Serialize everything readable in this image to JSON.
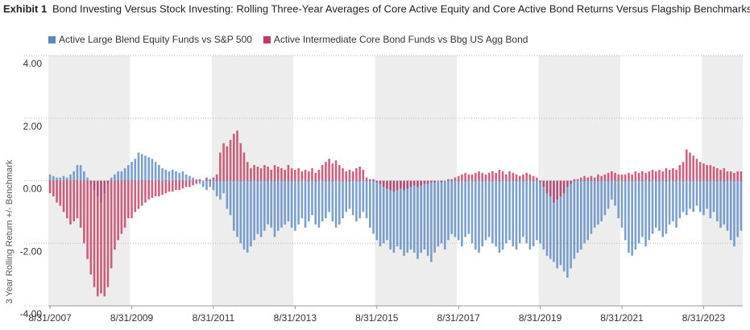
{
  "chart_data": {
    "type": "bar",
    "title_label": "Exhibit 1",
    "title": "Bond Investing Versus Stock Investing: Rolling Three-Year Averages of Core Active Equity and Core Active Bond Returns Versus Flagship Benchmarks",
    "y_label": "3 Year Rolling Return +/- Benchmark",
    "ylim": [
      -4,
      4
    ],
    "yticks": [
      {
        "value": 4,
        "label": "4.00"
      },
      {
        "value": 2,
        "label": "2.00"
      },
      {
        "value": 0,
        "label": "0.00"
      },
      {
        "value": -2,
        "label": "-2.00"
      },
      {
        "value": -4,
        "label": "-4.00"
      }
    ],
    "grid": true,
    "legend": "top-left",
    "categories": [
      "8/31/2007",
      null,
      null,
      null,
      null,
      null,
      null,
      null,
      null,
      null,
      null,
      null,
      null,
      null,
      null,
      null,
      null,
      null,
      null,
      null,
      null,
      null,
      null,
      null,
      "8/31/2009",
      null,
      null,
      null,
      null,
      null,
      null,
      null,
      null,
      null,
      null,
      null,
      null,
      null,
      null,
      null,
      null,
      null,
      null,
      null,
      null,
      null,
      null,
      null,
      "8/31/2011",
      null,
      null,
      null,
      null,
      null,
      null,
      null,
      null,
      null,
      null,
      null,
      null,
      null,
      null,
      null,
      null,
      null,
      null,
      null,
      null,
      null,
      null,
      null,
      "8/31/2013",
      null,
      null,
      null,
      null,
      null,
      null,
      null,
      null,
      null,
      null,
      null,
      null,
      null,
      null,
      null,
      null,
      null,
      null,
      null,
      null,
      null,
      null,
      null,
      "8/31/2015",
      null,
      null,
      null,
      null,
      null,
      null,
      null,
      null,
      null,
      null,
      null,
      null,
      null,
      null,
      null,
      null,
      null,
      null,
      null,
      null,
      null,
      null,
      null,
      "8/31/2017",
      null,
      null,
      null,
      null,
      null,
      null,
      null,
      null,
      null,
      null,
      null,
      null,
      null,
      null,
      null,
      null,
      null,
      null,
      null,
      null,
      null,
      null,
      null,
      "8/31/2019",
      null,
      null,
      null,
      null,
      null,
      null,
      null,
      null,
      null,
      null,
      null,
      null,
      null,
      null,
      null,
      null,
      null,
      null,
      null,
      null,
      null,
      null,
      null,
      "8/31/2021",
      null,
      null,
      null,
      null,
      null,
      null,
      null,
      null,
      null,
      null,
      null,
      null,
      null,
      null,
      null,
      null,
      null,
      null,
      null,
      null,
      null,
      null,
      null,
      "8/31/2023",
      null,
      null,
      null,
      null,
      null,
      null,
      null,
      null,
      null,
      null,
      null
    ],
    "series": [
      {
        "name": "Active Large Blend Equity Funds vs S&P 500",
        "color": "#5a88c2",
        "values": [
          0.2,
          0.15,
          0.1,
          0.1,
          0.15,
          0.1,
          0.2,
          0.3,
          0.5,
          0.5,
          0.3,
          0.1,
          -0.1,
          -0.3,
          -0.5,
          -0.7,
          -0.4,
          -0.1,
          0.1,
          0.2,
          0.3,
          0.3,
          0.4,
          0.5,
          0.6,
          0.7,
          0.9,
          0.85,
          0.8,
          0.75,
          0.7,
          0.6,
          0.5,
          0.4,
          0.35,
          0.3,
          0.35,
          0.3,
          0.25,
          0.3,
          0.2,
          0.15,
          0.1,
          0.05,
          -0.1,
          -0.2,
          -0.3,
          -0.2,
          -0.3,
          -0.5,
          -0.6,
          -0.4,
          -0.9,
          -1.1,
          -1.6,
          -1.8,
          -2.0,
          -2.2,
          -2.3,
          -2.1,
          -1.9,
          -1.7,
          -1.8,
          -1.6,
          -1.4,
          -1.5,
          -1.8,
          -1.6,
          -1.5,
          -1.4,
          -1.3,
          -1.5,
          -1.6,
          -1.4,
          -1.2,
          -1.5,
          -1.3,
          -1.1,
          -1.4,
          -1.5,
          -1.3,
          -1.2,
          -1.0,
          -1.3,
          -1.5,
          -1.4,
          -1.2,
          -1.0,
          -0.9,
          -1.1,
          -1.3,
          -1.2,
          -1.0,
          -1.2,
          -1.5,
          -1.7,
          -1.9,
          -2.1,
          -2.0,
          -1.9,
          -2.2,
          -2.3,
          -2.1,
          -2.2,
          -2.4,
          -2.3,
          -2.2,
          -2.3,
          -2.5,
          -2.3,
          -2.2,
          -2.4,
          -2.6,
          -2.3,
          -2.1,
          -2.0,
          -2.2,
          -1.9,
          -1.7,
          -1.8,
          -1.9,
          -2.1,
          -1.8,
          -1.7,
          -2.0,
          -2.2,
          -2.3,
          -2.1,
          -1.9,
          -1.8,
          -2.0,
          -2.1,
          -2.3,
          -2.2,
          -2.0,
          -1.9,
          -2.1,
          -2.2,
          -2.0,
          -1.8,
          -2.0,
          -2.2,
          -2.1,
          -1.9,
          -2.0,
          -2.2,
          -2.4,
          -2.5,
          -2.6,
          -2.8,
          -2.7,
          -2.9,
          -3.1,
          -2.8,
          -2.5,
          -2.3,
          -2.2,
          -2.0,
          -1.9,
          -1.7,
          -1.5,
          -1.4,
          -1.3,
          -1.1,
          -0.9,
          -0.6,
          -0.8,
          -1.2,
          -1.5,
          -1.9,
          -2.3,
          -2.4,
          -2.2,
          -2.0,
          -1.8,
          -2.1,
          -1.9,
          -1.7,
          -1.5,
          -1.6,
          -1.8,
          -1.7,
          -1.4,
          -1.3,
          -1.5,
          -1.2,
          -1.0,
          -1.1,
          -0.9,
          -1.0,
          -0.8,
          -1.0,
          -1.1,
          -0.9,
          -1.2,
          -1.0,
          -1.3,
          -1.5,
          -1.4,
          -1.6,
          -1.9,
          -2.1,
          -1.8,
          -1.6
        ]
      },
      {
        "name": "Active Intermediate Core Bond Funds vs Bbg US Agg Bond",
        "color": "#c2395f",
        "values": [
          -0.4,
          -0.5,
          -0.7,
          -0.8,
          -1.0,
          -1.2,
          -1.4,
          -1.3,
          -1.2,
          -1.5,
          -2.0,
          -2.5,
          -3.0,
          -3.4,
          -3.7,
          -3.6,
          -3.7,
          -3.4,
          -2.8,
          -2.2,
          -1.9,
          -1.7,
          -1.5,
          -1.2,
          -1.2,
          -1.0,
          -0.9,
          -0.8,
          -0.7,
          -0.6,
          -0.55,
          -0.5,
          -0.5,
          -0.45,
          -0.4,
          -0.35,
          -0.35,
          -0.3,
          -0.3,
          -0.25,
          -0.2,
          -0.2,
          -0.15,
          -0.1,
          0.05,
          0.0,
          0.1,
          0.05,
          0.1,
          0.2,
          0.9,
          1.2,
          1.1,
          1.3,
          1.5,
          1.6,
          1.2,
          0.9,
          0.6,
          0.4,
          0.5,
          0.45,
          0.4,
          0.5,
          0.45,
          0.35,
          0.5,
          0.45,
          0.4,
          0.35,
          0.5,
          0.4,
          0.35,
          0.4,
          0.3,
          0.35,
          0.3,
          0.4,
          0.25,
          0.35,
          0.5,
          0.6,
          0.7,
          0.55,
          0.65,
          0.5,
          0.4,
          0.3,
          0.35,
          0.3,
          0.4,
          0.45,
          0.35,
          0.1,
          0.05,
          0.05,
          -0.05,
          -0.1,
          -0.2,
          -0.25,
          -0.3,
          -0.35,
          -0.3,
          -0.25,
          -0.3,
          -0.25,
          -0.2,
          -0.15,
          -0.2,
          -0.15,
          -0.1,
          -0.1,
          -0.05,
          -0.05,
          0.0,
          -0.05,
          0.0,
          0.05,
          0.05,
          0.1,
          0.15,
          0.2,
          0.25,
          0.2,
          0.2,
          0.25,
          0.3,
          0.25,
          0.2,
          0.25,
          0.3,
          0.25,
          0.35,
          0.3,
          0.2,
          0.3,
          0.25,
          0.2,
          0.15,
          0.2,
          0.25,
          0.2,
          0.15,
          0.1,
          -0.05,
          -0.2,
          -0.4,
          -0.5,
          -0.7,
          -0.6,
          -0.5,
          -0.4,
          -0.2,
          -0.1,
          0.05,
          0.05,
          0.1,
          0.15,
          0.1,
          0.15,
          0.1,
          0.2,
          0.15,
          0.2,
          0.25,
          0.3,
          0.25,
          0.2,
          0.2,
          0.2,
          0.25,
          0.2,
          0.3,
          0.25,
          0.3,
          0.25,
          0.3,
          0.35,
          0.3,
          0.35,
          0.3,
          0.4,
          0.35,
          0.4,
          0.35,
          0.5,
          0.6,
          1.0,
          0.9,
          0.8,
          0.7,
          0.6,
          0.55,
          0.5,
          0.5,
          0.45,
          0.4,
          0.35,
          0.4,
          0.3,
          0.3,
          0.25,
          0.3,
          0.3
        ]
      }
    ]
  }
}
